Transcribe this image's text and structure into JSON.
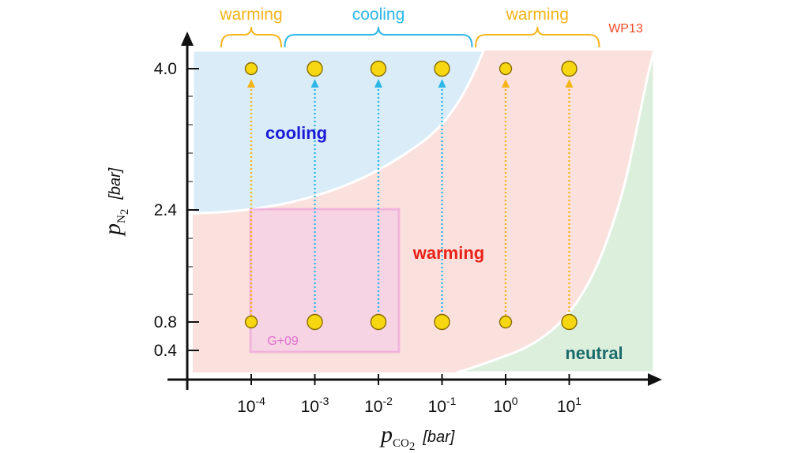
{
  "chart_data": {
    "type": "scatter",
    "title": "",
    "xlabel": {
      "symbol": "p",
      "subscript": "CO",
      "subscript2": "2",
      "unit": "[bar]"
    },
    "ylabel": {
      "symbol": "p",
      "subscript": "N",
      "subscript2": "2",
      "unit": "[bar]"
    },
    "x_scale": "log",
    "x_ticks": [
      {
        "base": "10",
        "exp": "-4",
        "value": 0.0001
      },
      {
        "base": "10",
        "exp": "-3",
        "value": 0.001
      },
      {
        "base": "10",
        "exp": "-2",
        "value": 0.01
      },
      {
        "base": "10",
        "exp": "-1",
        "value": 0.1
      },
      {
        "base": "10",
        "exp": "0",
        "value": 1
      },
      {
        "base": "10",
        "exp": "1",
        "value": 10
      }
    ],
    "y_ticks": [
      "0.4",
      "0.8",
      "2.4",
      "4.0"
    ],
    "y_tick_values": [
      0.4,
      0.8,
      2.4,
      4.0
    ],
    "regions": [
      {
        "label": "cooling",
        "color": "#1b1bd6",
        "fill": "#d9ecf8"
      },
      {
        "label": "warming",
        "color": "#e8231a",
        "fill": "#fbe1dd"
      },
      {
        "label": "neutral",
        "color": "#1c6b6b",
        "fill": "#dcefdc"
      }
    ],
    "top_labels": [
      {
        "label": "warming",
        "color": "#f4b41a",
        "x_from": 0.0001,
        "x_to": 0.0001
      },
      {
        "label": "cooling",
        "color": "#2cb7e8",
        "x_from": 0.001,
        "x_to": 0.1
      },
      {
        "label": "warming",
        "color": "#f4b41a",
        "x_from": 1,
        "x_to": 10
      }
    ],
    "annotations": [
      {
        "label": "WP13",
        "color": "#f04a28"
      },
      {
        "label": "G+09",
        "color": "#e36fd0"
      }
    ],
    "points": [
      {
        "x": 0.0001,
        "y": 0.8
      },
      {
        "x": 0.0001,
        "y": 4.0
      },
      {
        "x": 0.001,
        "y": 0.8
      },
      {
        "x": 0.001,
        "y": 4.0
      },
      {
        "x": 0.01,
        "y": 0.8
      },
      {
        "x": 0.01,
        "y": 4.0
      },
      {
        "x": 0.1,
        "y": 0.8
      },
      {
        "x": 0.1,
        "y": 4.0
      },
      {
        "x": 1,
        "y": 0.8
      },
      {
        "x": 1,
        "y": 4.0
      },
      {
        "x": 10,
        "y": 0.8
      },
      {
        "x": 10,
        "y": 4.0
      }
    ],
    "arrows": [
      {
        "x": 0.0001,
        "from": 0.8,
        "to": 4.0,
        "color": "#f4b41a"
      },
      {
        "x": 0.001,
        "from": 0.8,
        "to": 4.0,
        "color": "#2cb7e8"
      },
      {
        "x": 0.01,
        "from": 0.8,
        "to": 4.0,
        "color": "#2cb7e8"
      },
      {
        "x": 0.1,
        "from": 0.8,
        "to": 4.0,
        "color": "#2cb7e8"
      },
      {
        "x": 1,
        "from": 0.8,
        "to": 4.0,
        "color": "#f4b41a"
      },
      {
        "x": 10,
        "from": 0.8,
        "to": 4.0,
        "color": "#f4b41a"
      }
    ],
    "colors": {
      "point_fill": "#f7d711",
      "point_stroke": "#8a6d00",
      "axis": "#111111",
      "box": "#e36fd0",
      "box_fill": "#f2c6ea"
    }
  }
}
